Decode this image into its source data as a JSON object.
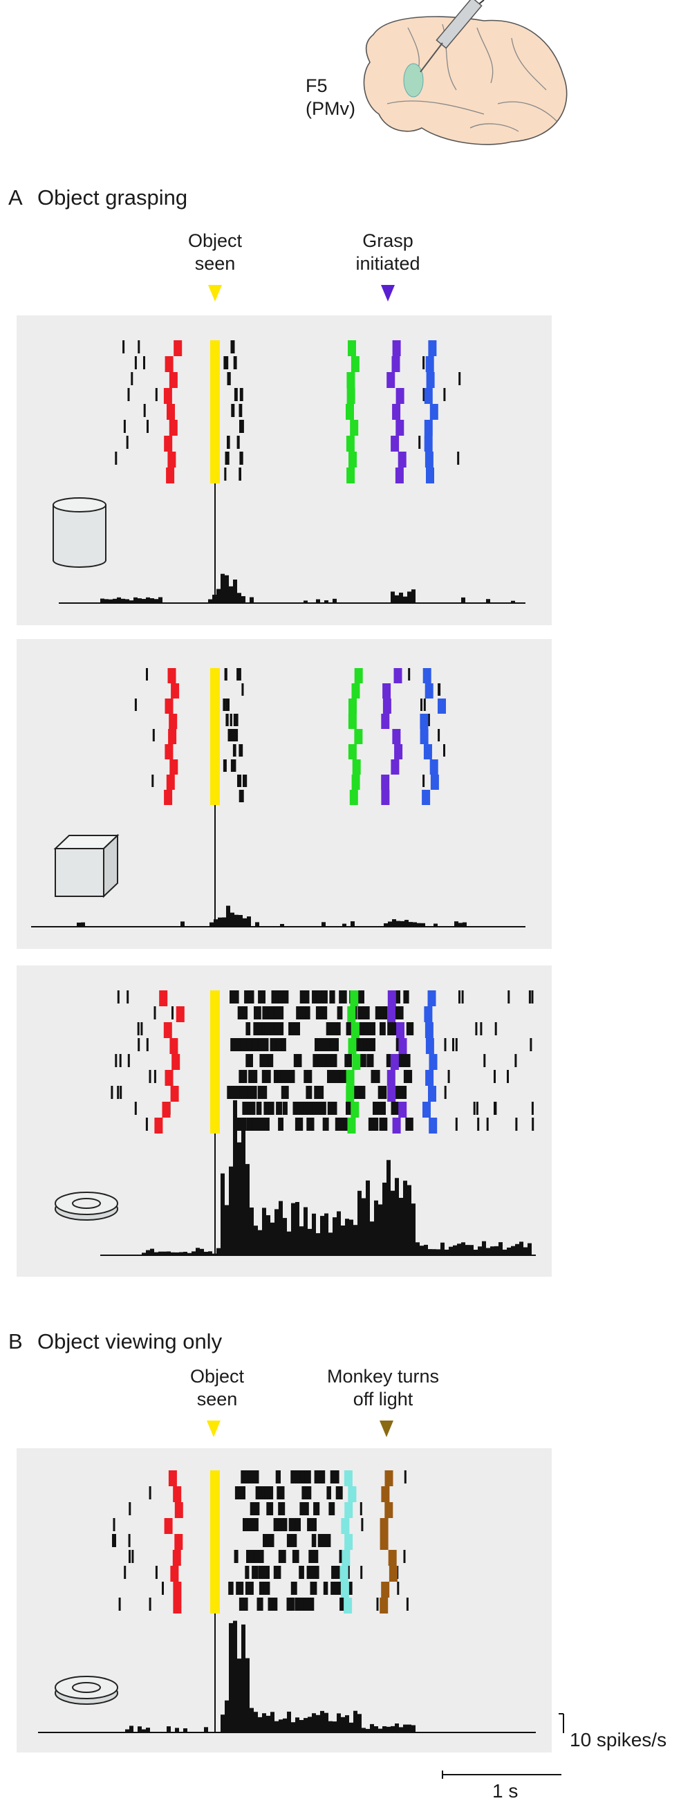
{
  "header": {
    "brain_label_line1": "F5",
    "brain_label_line2": "(PMv)"
  },
  "section_a": {
    "letter": "A",
    "title": "Object grasping",
    "event1_line1": "Object",
    "event1_line2": "seen",
    "event2_line1": "Grasp",
    "event2_line2": "initiated"
  },
  "section_b": {
    "letter": "B",
    "title": "Object viewing only",
    "event1_line1": "Object",
    "event1_line2": "seen",
    "event2_line1": "Monkey turns",
    "event2_line2": "off light"
  },
  "scale_bar": {
    "rate_label": "10 spikes/s",
    "time_label": "1 s"
  },
  "colors": {
    "object_seen": "#ffe800",
    "red_marker": "#ee1c24",
    "green_marker": "#22dd22",
    "purple_marker": "#6a2ad6",
    "blue_marker": "#2e5be8",
    "cyan_marker": "#7fe6e0",
    "brown_marker": "#9a5a12",
    "grasp_arrow": "#5a1fd1",
    "light_arrow": "#8a6a12"
  },
  "icons": [
    "brain-icon",
    "electrode-icon",
    "cylinder-icon",
    "cube-icon",
    "ring-icon"
  ]
}
